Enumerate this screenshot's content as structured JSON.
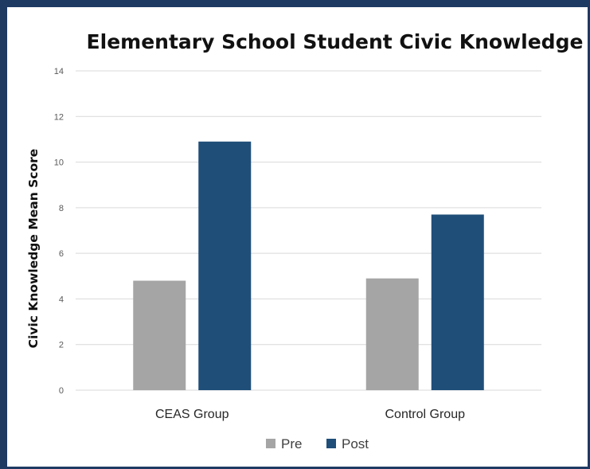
{
  "colors": {
    "frame": "#1e3a63",
    "pre": "#a5a5a5",
    "post": "#1f4e79",
    "grid": "#d9d9d9"
  },
  "chart_data": {
    "type": "bar",
    "title": "Elementary School Student Civic Knowledge",
    "xlabel": "",
    "ylabel": "Civic Knowledge Mean Score",
    "categories": [
      "CEAS Group",
      "Control Group"
    ],
    "series": [
      {
        "name": "Pre",
        "values": [
          4.8,
          4.9
        ],
        "color": "#a5a5a5"
      },
      {
        "name": "Post",
        "values": [
          10.9,
          7.7
        ],
        "color": "#1f4e79"
      }
    ],
    "ylim": [
      0,
      14
    ],
    "yticks": [
      "0",
      "2",
      "4",
      "6",
      "8",
      "10",
      "12",
      "14"
    ],
    "grid": true,
    "legend_position": "bottom"
  }
}
